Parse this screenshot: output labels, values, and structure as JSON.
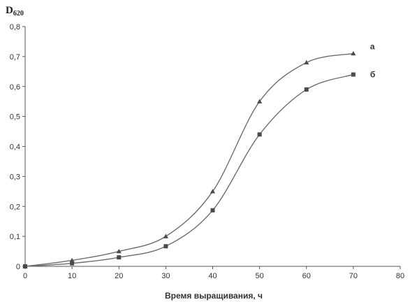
{
  "chart_data": {
    "type": "line",
    "ylabel": "D",
    "ylabel_subscript": "620",
    "xlabel": "Время выращивания, ч",
    "xlim": [
      0,
      80
    ],
    "ylim": [
      0,
      0.8
    ],
    "x_ticks": [
      "0",
      "10",
      "20",
      "30",
      "40",
      "50",
      "60",
      "70",
      "80"
    ],
    "y_ticks": [
      "0",
      "0,1",
      "0,2",
      "0,3",
      "0,4",
      "0,5",
      "0,6",
      "0,7",
      "0,8"
    ],
    "grid": false,
    "smooth": true,
    "series": [
      {
        "name": "а",
        "marker": "triangle",
        "x": [
          0,
          10,
          20,
          30,
          40,
          50,
          60,
          70
        ],
        "y": [
          0,
          0.02,
          0.05,
          0.1,
          0.25,
          0.55,
          0.68,
          0.71
        ]
      },
      {
        "name": "б",
        "marker": "square",
        "x": [
          0,
          10,
          20,
          30,
          40,
          50,
          60,
          70
        ],
        "y": [
          0,
          0.01,
          0.03,
          0.067,
          0.187,
          0.44,
          0.59,
          0.64
        ]
      }
    ],
    "colors": {
      "line": "#6e6e6e",
      "marker": "#4a4a4a",
      "axis": "#555555"
    }
  }
}
